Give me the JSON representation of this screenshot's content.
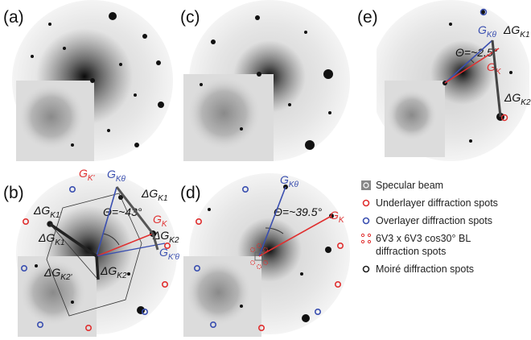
{
  "panels": [
    {
      "label": "(a)",
      "annotations": []
    },
    {
      "label": "(b)",
      "annotations": [
        {
          "main": "G",
          "sub": "K'",
          "color": "#e03030"
        },
        {
          "main": "G",
          "sub": "Kθ",
          "color": "#3a4fb0"
        },
        {
          "main": "ΔG",
          "sub": "K1",
          "color": "#111111"
        },
        {
          "main": "ΔG",
          "sub": "K1'",
          "color": "#111111"
        },
        {
          "main": "Θ=~43°",
          "color": "#111111"
        },
        {
          "main": "G",
          "sub": "K",
          "color": "#e03030"
        },
        {
          "main": "ΔG",
          "sub": "K2",
          "color": "#111111"
        },
        {
          "main": "G",
          "sub": "K'θ",
          "color": "#3a4fb0"
        },
        {
          "main": "ΔG",
          "sub": "K1",
          "color": "#111111"
        },
        {
          "main": "ΔG",
          "sub": "K2'",
          "color": "#111111"
        },
        {
          "main": "ΔG",
          "sub": "K2",
          "color": "#111111"
        }
      ]
    },
    {
      "label": "(c)",
      "annotations": []
    },
    {
      "label": "(d)",
      "annotations": [
        {
          "main": "G",
          "sub": "Kθ",
          "color": "#3a4fb0"
        },
        {
          "main": "Θ=~39.5°",
          "color": "#111111"
        },
        {
          "main": "G",
          "sub": "K",
          "color": "#e03030"
        }
      ]
    },
    {
      "label": "(e)",
      "annotations": [
        {
          "main": "G",
          "sub": "Kθ",
          "color": "#3a4fb0"
        },
        {
          "main": "ΔG",
          "sub": "K1",
          "color": "#111111"
        },
        {
          "main": "Θ=~2.5°",
          "color": "#111111"
        },
        {
          "main": "G",
          "sub": "K",
          "color": "#e03030"
        },
        {
          "main": "ΔG",
          "sub": "K2",
          "color": "#111111"
        }
      ]
    }
  ],
  "legend": [
    {
      "lines": [
        "Specular beam"
      ]
    },
    {
      "lines": [
        "Underlayer diffraction spots"
      ]
    },
    {
      "lines": [
        "Overlayer diffraction spots"
      ]
    },
    {
      "lines": [
        "6V3 x 6V3 cos30° BL",
        "diffraction spots"
      ]
    },
    {
      "lines": [
        "Moiré diffraction spots"
      ]
    }
  ]
}
